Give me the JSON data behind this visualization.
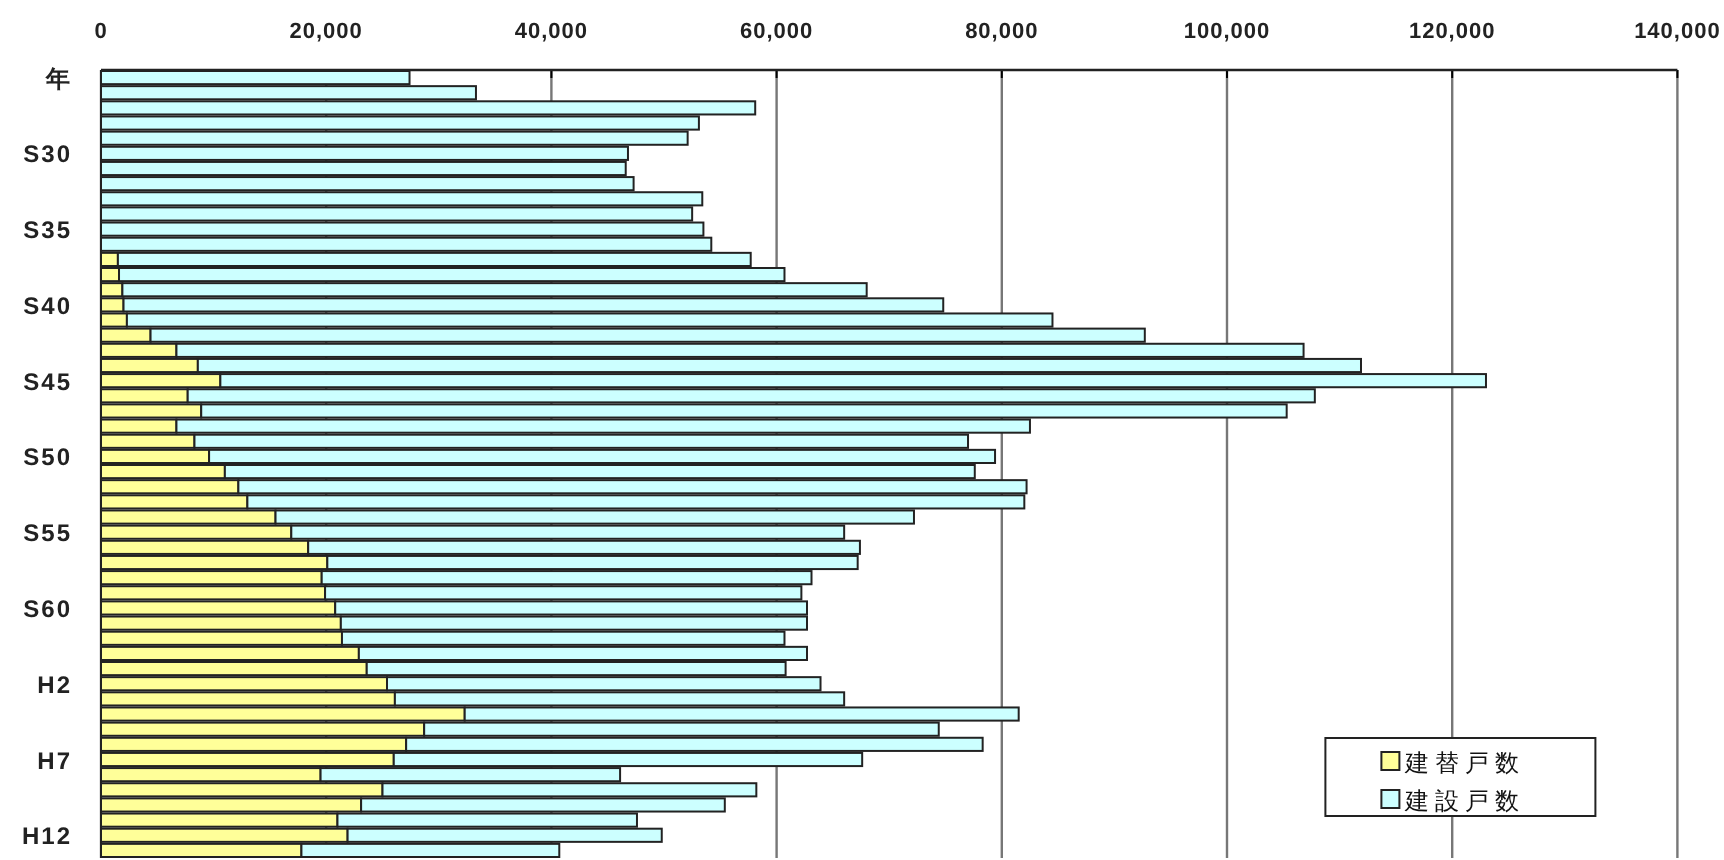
{
  "chart_data": {
    "type": "bar",
    "orientation": "horizontal",
    "stacked": true,
    "categories": [
      "年",
      null,
      null,
      null,
      null,
      "S30",
      null,
      null,
      null,
      null,
      "S35",
      null,
      null,
      null,
      null,
      "S40",
      null,
      null,
      null,
      null,
      "S45",
      null,
      null,
      null,
      null,
      "S50",
      null,
      null,
      null,
      null,
      "S55",
      null,
      null,
      null,
      null,
      "S60",
      null,
      null,
      null,
      null,
      "H2",
      null,
      null,
      null,
      null,
      "H7",
      null,
      null,
      null,
      null,
      "H12",
      null
    ],
    "series": [
      {
        "name": "建替戸数",
        "color": "#ffff99",
        "values": [
          null,
          null,
          null,
          null,
          null,
          null,
          null,
          null,
          null,
          null,
          null,
          null,
          1500,
          1600,
          1900,
          2000,
          2300,
          4400,
          6700,
          8600,
          10600,
          7700,
          8900,
          6700,
          8300,
          9600,
          11000,
          12200,
          13000,
          15500,
          16900,
          18400,
          20100,
          19600,
          19900,
          20800,
          21300,
          21400,
          22900,
          23600,
          25400,
          26100,
          32300,
          28700,
          27100,
          26000,
          19500,
          25000,
          23100,
          21000,
          21900,
          17800
        ]
      },
      {
        "name": "建設戸数",
        "color": "#ccffff",
        "values": [
          27400,
          33300,
          58100,
          53100,
          52100,
          46800,
          46600,
          47300,
          53400,
          52500,
          53500,
          54200,
          56200,
          59100,
          66100,
          72800,
          82200,
          88300,
          100100,
          103300,
          112400,
          100100,
          96400,
          75800,
          68700,
          69800,
          66600,
          70000,
          69000,
          56700,
          49100,
          49000,
          47100,
          43500,
          42300,
          41900,
          41400,
          39300,
          39800,
          37200,
          38500,
          39900,
          49200,
          45700,
          51200,
          41600,
          26600,
          33200,
          32300,
          26600,
          27900,
          22900
        ]
      }
    ],
    "xlim": [
      0,
      140000
    ],
    "xticks": [
      0,
      {
        "value": 20000,
        "label": "20,000"
      },
      {
        "value": 40000,
        "label": "40,000"
      },
      {
        "value": 60000,
        "label": "60,000"
      },
      {
        "value": 80000,
        "label": "80,000"
      },
      {
        "value": 100000,
        "label": "100,000"
      },
      {
        "value": 120000,
        "label": "120,000"
      },
      {
        "value": 140000,
        "label": "140,000"
      }
    ],
    "grid": "x",
    "legend": "bottom right"
  }
}
